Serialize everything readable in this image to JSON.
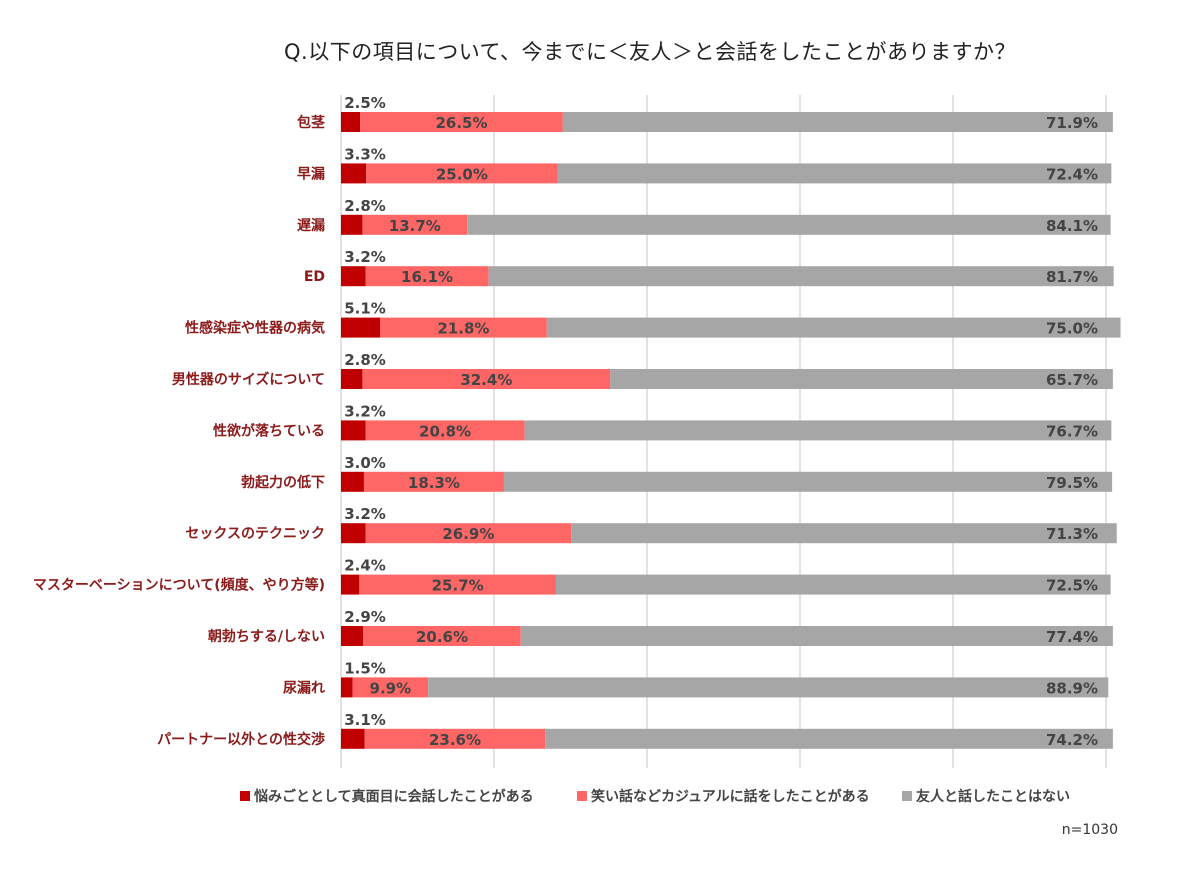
{
  "chart_data": {
    "type": "bar",
    "orientation": "horizontal",
    "stacked": true,
    "title": "Q.以下の項目について、今までに＜友人＞と会話をしたことがありますか？",
    "note": "n=1030",
    "categories": [
      "包茎",
      "早漏",
      "遅漏",
      "ED",
      "性感染症や性器の病気",
      "男性器のサイズについて",
      "性欲が落ちている",
      "勃起力の低下",
      "セックスのテクニック",
      "マスターベーションについて(頻度、やり方等)",
      "朝勃ちする/しない",
      "尿漏れ",
      "パートナー以外との性交渉"
    ],
    "series": [
      {
        "name": "悩みごととして真面目に会話したことがある",
        "color": "#c00000",
        "values": [
          2.5,
          3.3,
          2.8,
          3.2,
          5.1,
          2.8,
          3.2,
          3.0,
          3.2,
          2.4,
          2.9,
          1.5,
          3.1
        ],
        "labels": [
          "2.5%",
          "3.3%",
          "2.8%",
          "3.2%",
          "5.1%",
          "2.8%",
          "3.2%",
          "3.0%",
          "3.2%",
          "2.4%",
          "2.9%",
          "1.5%",
          "3.1%"
        ]
      },
      {
        "name": "笑い話などカジュアルに話をしたことがある",
        "color": "#ff6666",
        "values": [
          26.5,
          25.0,
          13.7,
          16.1,
          21.8,
          32.4,
          20.8,
          18.3,
          26.9,
          25.7,
          20.6,
          9.9,
          23.6
        ],
        "labels": [
          "26.5%",
          "25.0%",
          "13.7%",
          "16.1%",
          "21.8%",
          "32.4%",
          "20.8%",
          "18.3%",
          "26.9%",
          "25.7%",
          "20.6%",
          "9.9%",
          "23.6%"
        ]
      },
      {
        "name": "友人と話したことはない",
        "color": "#a6a6a6",
        "values": [
          71.9,
          72.4,
          84.1,
          81.7,
          75.0,
          65.7,
          76.7,
          79.5,
          71.3,
          72.5,
          77.4,
          88.9,
          74.2
        ],
        "labels": [
          "71.9%",
          "72.4%",
          "84.1%",
          "81.7%",
          "75.0%",
          "65.7%",
          "76.7%",
          "79.5%",
          "71.3%",
          "72.5%",
          "77.4%",
          "88.9%",
          "74.2%"
        ]
      }
    ],
    "xlim": [
      0,
      100
    ],
    "grid": true,
    "legend_position": "bottom",
    "label_color": "#8b1a1a"
  }
}
